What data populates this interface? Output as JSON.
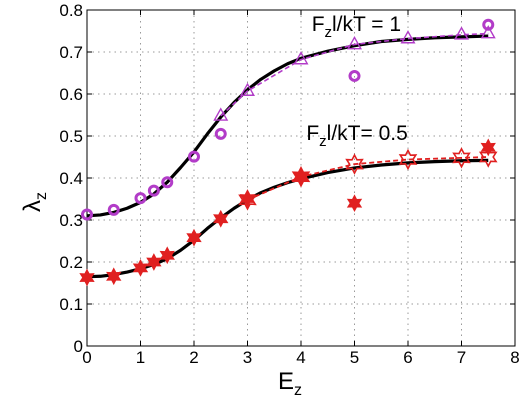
{
  "chart_data": {
    "type": "line",
    "title": "",
    "xlabel": "E",
    "xlabel_sub": "z",
    "ylabel": "λ",
    "ylabel_sub": "z",
    "xlim": [
      0,
      8
    ],
    "ylim": [
      0,
      0.8
    ],
    "xticks": [
      0,
      1,
      2,
      3,
      4,
      5,
      6,
      7,
      8
    ],
    "yticks": [
      0,
      0.1,
      0.2,
      0.3,
      0.4,
      0.5,
      0.6,
      0.7,
      0.8
    ],
    "xtick_labels": [
      "0",
      "1",
      "2",
      "3",
      "4",
      "5",
      "6",
      "7",
      "8"
    ],
    "ytick_labels": [
      "0",
      "0.1",
      "0.2",
      "0.3",
      "0.4",
      "0.5",
      "0.6",
      "0.7",
      "0.8"
    ],
    "grid": true,
    "annotations": [
      {
        "main": "F",
        "sub": "z",
        "rest": "l/kT = 1",
        "x": 4.2,
        "y": 0.75
      },
      {
        "main": "F",
        "sub": "z",
        "rest": "l/kT= 0.5",
        "x": 4.1,
        "y": 0.49
      }
    ],
    "series": [
      {
        "group": "1",
        "style": "solid-curve",
        "color": "#000000",
        "x": [
          0,
          0.25,
          0.5,
          0.75,
          1,
          1.25,
          1.5,
          1.75,
          2,
          2.25,
          2.5,
          2.75,
          3,
          3.25,
          3.5,
          3.75,
          4,
          4.5,
          5,
          5.5,
          6,
          6.5,
          7,
          7.5
        ],
        "y": [
          0.31,
          0.312,
          0.318,
          0.328,
          0.342,
          0.362,
          0.39,
          0.425,
          0.462,
          0.505,
          0.545,
          0.58,
          0.61,
          0.635,
          0.655,
          0.672,
          0.685,
          0.702,
          0.715,
          0.725,
          0.73,
          0.734,
          0.736,
          0.738
        ]
      },
      {
        "group": "1",
        "style": "dashed-triangles",
        "color": "#b23cc8",
        "x": [
          2.5,
          3,
          4,
          5,
          6,
          7,
          7.5
        ],
        "y": [
          0.548,
          0.607,
          0.682,
          0.718,
          0.732,
          0.741,
          0.744
        ]
      },
      {
        "group": "1",
        "style": "circles",
        "color": "#b23cc8",
        "x": [
          0,
          0.5,
          1,
          1.25,
          1.5,
          2,
          2.5,
          5,
          7.5
        ],
        "y": [
          0.313,
          0.324,
          0.352,
          0.37,
          0.39,
          0.451,
          0.505,
          0.643,
          0.765
        ]
      },
      {
        "group": "0.5",
        "style": "solid-curve",
        "color": "#000000",
        "x": [
          0,
          0.25,
          0.5,
          0.75,
          1,
          1.25,
          1.5,
          1.75,
          2,
          2.25,
          2.5,
          2.75,
          3,
          3.25,
          3.5,
          3.75,
          4,
          4.5,
          5,
          5.5,
          6,
          6.5,
          7,
          7.5
        ],
        "y": [
          0.165,
          0.166,
          0.17,
          0.176,
          0.184,
          0.194,
          0.208,
          0.228,
          0.252,
          0.28,
          0.305,
          0.328,
          0.348,
          0.365,
          0.378,
          0.389,
          0.398,
          0.413,
          0.424,
          0.431,
          0.436,
          0.439,
          0.441,
          0.442
        ]
      },
      {
        "group": "0.5",
        "style": "dashed-star-outline",
        "color": "#e02020",
        "x": [
          3,
          4,
          5,
          6,
          7,
          7.5
        ],
        "y": [
          0.348,
          0.403,
          0.433,
          0.444,
          0.448,
          0.45
        ]
      },
      {
        "group": "0.5",
        "style": "filled-stars",
        "color": "#e02020",
        "x": [
          0,
          0.5,
          1,
          1.25,
          1.5,
          2,
          2.5,
          3,
          4,
          5,
          7.5
        ],
        "y": [
          0.163,
          0.166,
          0.186,
          0.2,
          0.216,
          0.258,
          0.303,
          0.351,
          0.404,
          0.34,
          0.473
        ]
      }
    ]
  }
}
